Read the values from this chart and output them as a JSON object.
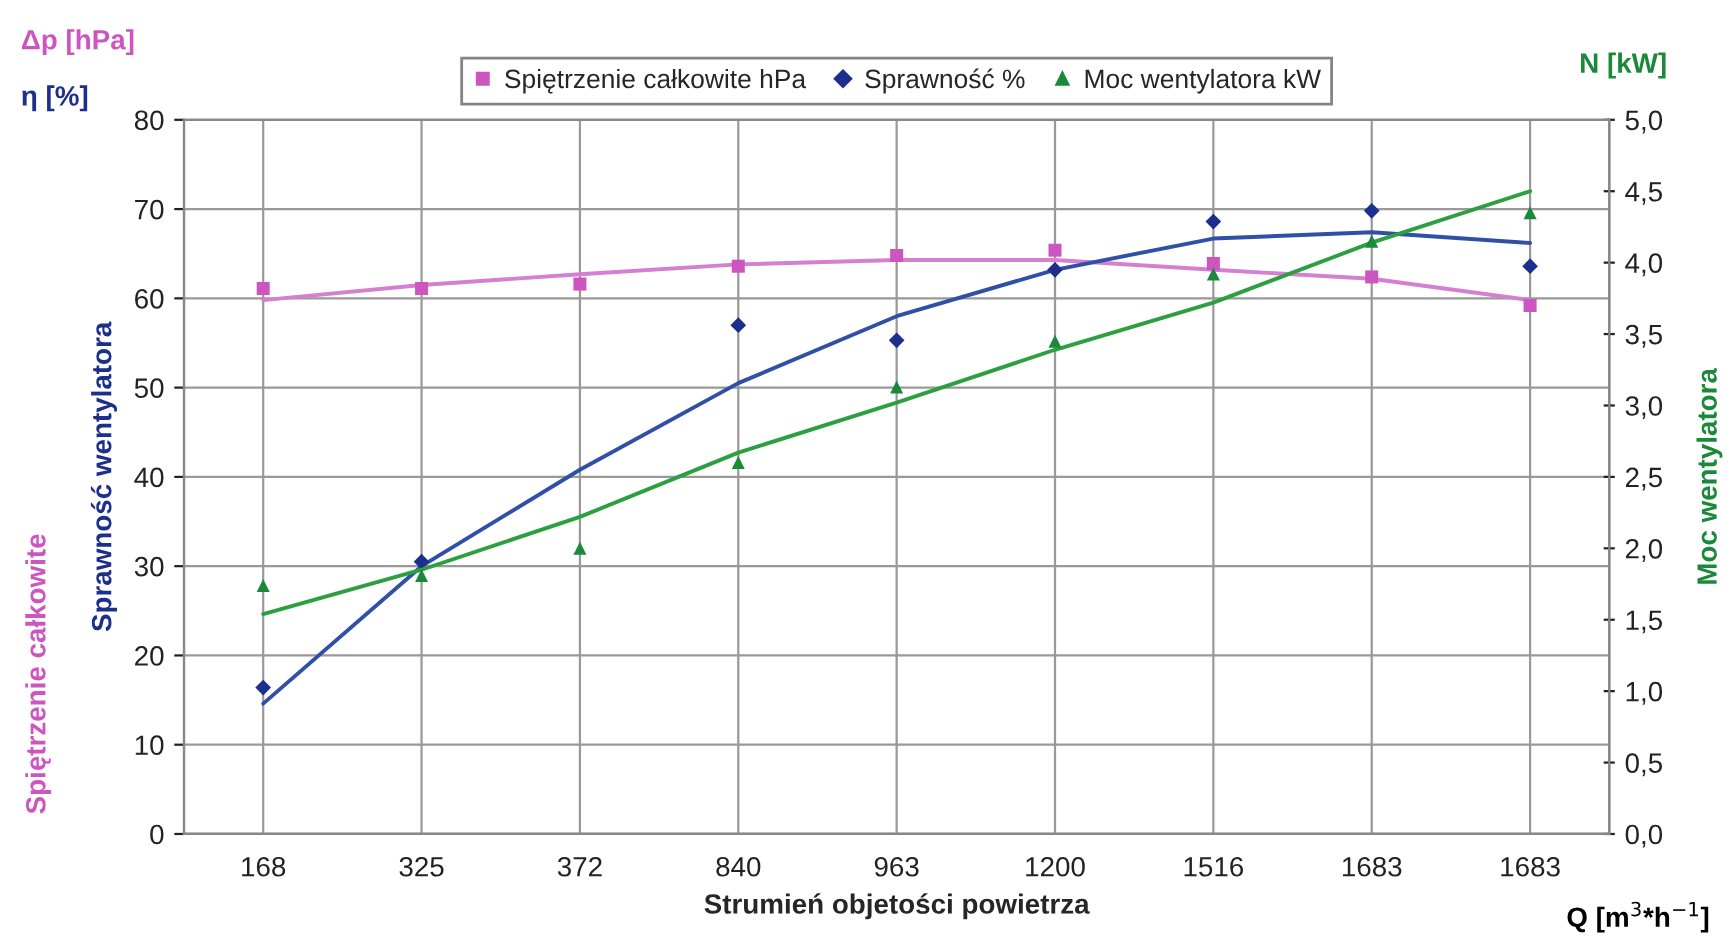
{
  "chart_data": {
    "type": "scatter",
    "categories": [
      "168",
      "325",
      "372",
      "840",
      "963",
      "1200",
      "1516",
      "1683",
      "1683"
    ],
    "xlabel": "Strumień objetości powietrza",
    "ylabel": "Sprawność wentylatora",
    "y2label": "Moc wentylatora",
    "annotations": [
      "Δp [hPa]",
      "η [%]",
      "N [kW]",
      "Spiętrzenie całkowite",
      "Q [m$^{3}$*h$^{−1}$]"
    ],
    "series": [
      {
        "name": "Spiętrzenie całkowite hPa",
        "marker": "square",
        "color": "#cc55c0",
        "values": [
          61.1,
          61.1,
          61.6,
          63.6,
          64.8,
          65.4,
          63.9,
          62.4,
          59.2
        ]
      },
      {
        "name": "Sprawność %",
        "marker": "diamond",
        "color": "#1c2f8c",
        "values": [
          16.4,
          30.5,
          null,
          57.0,
          55.3,
          63.2,
          68.6,
          69.8,
          63.6
        ]
      },
      {
        "name": "Moc wentylatora kW",
        "marker": "triangle",
        "axis": "y2",
        "color": "#1a8a3a",
        "values": [
          1.74,
          1.81,
          2.0,
          2.6,
          3.13,
          3.45,
          3.92,
          4.15,
          4.35
        ]
      },
      {
        "type": "line",
        "marker": "none",
        "color": "#d47fd0",
        "values": [
          59.8,
          61.5,
          62.7,
          63.8,
          64.3,
          64.3,
          63.2,
          62.2,
          59.8
        ]
      },
      {
        "type": "line",
        "marker": "none",
        "color": "#3050a8",
        "values": [
          14.6,
          30.0,
          40.8,
          50.5,
          58.0,
          63.2,
          66.7,
          67.4,
          66.2
        ]
      },
      {
        "type": "line",
        "marker": "none",
        "axis": "y2",
        "color": "#2ca040",
        "values": [
          1.54,
          1.85,
          2.22,
          2.67,
          3.02,
          3.39,
          3.72,
          4.14,
          4.5
        ]
      }
    ],
    "ylim": [
      0,
      80
    ],
    "yticks": [
      0,
      10,
      20,
      30,
      40,
      50,
      60,
      70,
      80
    ],
    "y2lim": [
      0,
      5
    ],
    "y2ticks": [
      {
        "value": 0,
        "label": "0,0"
      },
      {
        "value": 0.5,
        "label": "0,5"
      },
      {
        "value": 1,
        "label": "1,0"
      },
      {
        "value": 1.5,
        "label": "1,5"
      },
      {
        "value": 2,
        "label": "2,0"
      },
      {
        "value": 2.5,
        "label": "2,5"
      },
      {
        "value": 3,
        "label": "3,0"
      },
      {
        "value": 3.5,
        "label": "3,5"
      },
      {
        "value": 4,
        "label": "4,0"
      },
      {
        "value": 4.5,
        "label": "4,5"
      },
      {
        "value": 5,
        "label": "5,0"
      }
    ],
    "grid": true,
    "legend": "top"
  }
}
